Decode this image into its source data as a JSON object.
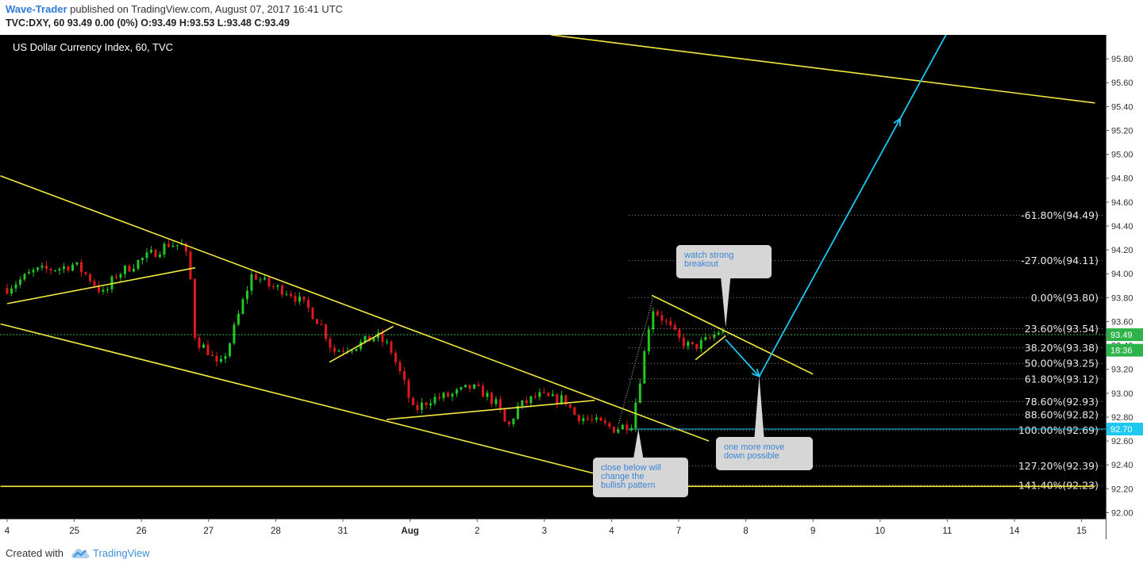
{
  "header": {
    "author": "Wave-Trader",
    "published_text": " published on TradingView.com, August 07, 2017 16:41 UTC",
    "ticker_line": "TVC:DXY, 60  93.49 0.00 (0%) O:93.49 H:93.53 L:93.48 C:93.49"
  },
  "footer": {
    "created_with": "Created with",
    "brand": "TradingView"
  },
  "colors": {
    "background": "#000000",
    "up_candle": "#23c623",
    "down_candle": "#e01a1a",
    "trendline": "#f2ea3c",
    "projection_arrow": "#1ec8f0",
    "fib_line": "#8a8a8a",
    "price_label": "#1ec8f0"
  },
  "chart_data": {
    "type": "candlestick",
    "title": "US Dollar Currency Index, 60, TVC",
    "x_ticks": [
      "4",
      "25",
      "26",
      "27",
      "28",
      "31",
      "Aug",
      "2",
      "3",
      "4",
      "7",
      "8",
      "9",
      "10",
      "11",
      "14",
      "15"
    ],
    "y_ticks": [
      "92.00",
      "92.20",
      "92.40",
      "92.60",
      "92.80",
      "93.00",
      "93.20",
      "93.40",
      "93.60",
      "93.80",
      "94.00",
      "94.20",
      "94.40",
      "94.60",
      "94.80",
      "95.00",
      "95.20",
      "95.40",
      "95.60",
      "95.80"
    ],
    "ylim": [
      91.95,
      96.0
    ],
    "grid": false,
    "series_close": [
      {
        "t": 0.0,
        "v": 93.88
      },
      {
        "t": 0.4,
        "v": 94.02
      },
      {
        "t": 0.8,
        "v": 94.05
      },
      {
        "t": 1.0,
        "v": 94.08
      },
      {
        "t": 1.2,
        "v": 93.98
      },
      {
        "t": 1.45,
        "v": 93.82
      },
      {
        "t": 1.6,
        "v": 93.98
      },
      {
        "t": 1.8,
        "v": 94.05
      },
      {
        "t": 2.0,
        "v": 94.12
      },
      {
        "t": 2.2,
        "v": 94.18
      },
      {
        "t": 2.4,
        "v": 94.25
      },
      {
        "t": 2.6,
        "v": 94.24
      },
      {
        "t": 2.7,
        "v": 94.1
      },
      {
        "t": 2.75,
        "v": 93.85
      },
      {
        "t": 2.8,
        "v": 93.45
      },
      {
        "t": 3.0,
        "v": 93.35
      },
      {
        "t": 3.15,
        "v": 93.2
      },
      {
        "t": 3.3,
        "v": 93.4
      },
      {
        "t": 3.5,
        "v": 93.75
      },
      {
        "t": 3.65,
        "v": 94.0
      },
      {
        "t": 3.9,
        "v": 93.9
      },
      {
        "t": 4.2,
        "v": 93.85
      },
      {
        "t": 4.5,
        "v": 93.7
      },
      {
        "t": 4.7,
        "v": 93.55
      },
      {
        "t": 4.85,
        "v": 93.35
      },
      {
        "t": 5.2,
        "v": 93.4
      },
      {
        "t": 5.5,
        "v": 93.48
      },
      {
        "t": 5.7,
        "v": 93.38
      },
      {
        "t": 5.9,
        "v": 93.1
      },
      {
        "t": 6.05,
        "v": 92.85
      },
      {
        "t": 6.3,
        "v": 92.95
      },
      {
        "t": 6.6,
        "v": 92.98
      },
      {
        "t": 6.9,
        "v": 93.05
      },
      {
        "t": 7.1,
        "v": 93.0
      },
      {
        "t": 7.3,
        "v": 92.9
      },
      {
        "t": 7.45,
        "v": 92.7
      },
      {
        "t": 7.6,
        "v": 92.88
      },
      {
        "t": 7.9,
        "v": 92.98
      },
      {
        "t": 8.1,
        "v": 92.95
      },
      {
        "t": 8.3,
        "v": 92.95
      },
      {
        "t": 8.45,
        "v": 92.82
      },
      {
        "t": 8.65,
        "v": 92.78
      },
      {
        "t": 8.85,
        "v": 92.74
      },
      {
        "t": 9.05,
        "v": 92.7
      },
      {
        "t": 9.3,
        "v": 92.75
      },
      {
        "t": 9.45,
        "v": 93.2
      },
      {
        "t": 9.6,
        "v": 93.72
      },
      {
        "t": 9.8,
        "v": 93.6
      },
      {
        "t": 10.0,
        "v": 93.45
      },
      {
        "t": 10.2,
        "v": 93.38
      },
      {
        "t": 10.45,
        "v": 93.45
      },
      {
        "t": 10.6,
        "v": 93.52
      },
      {
        "t": 10.7,
        "v": 93.49
      }
    ],
    "fib_levels": [
      {
        "label": "-61.80%(94.49)",
        "value": 94.49
      },
      {
        "label": "-27.00%(94.11)",
        "value": 94.11
      },
      {
        "label": "0.00%(93.80)",
        "value": 93.8
      },
      {
        "label": "23.60%(93.54)",
        "value": 93.54
      },
      {
        "label": "38.20%(93.38)",
        "value": 93.38
      },
      {
        "label": "50.00%(93.25)",
        "value": 93.25
      },
      {
        "label": "61.80%(93.12)",
        "value": 93.12
      },
      {
        "label": "78.60%(92.93)",
        "value": 92.93
      },
      {
        "label": "88.60%(92.82)",
        "value": 92.82
      },
      {
        "label": "100.00%(92.69)",
        "value": 92.69
      },
      {
        "label": "127.20%(92.39)",
        "value": 92.39
      },
      {
        "label": "141.40%(92.23)",
        "value": 92.23
      }
    ],
    "price_labels": [
      {
        "text": "93.49",
        "value": 93.49
      },
      {
        "text": "18:36",
        "value": 93.36
      },
      {
        "text": "92.70",
        "value": 92.7
      }
    ],
    "trendlines": [
      {
        "name": "upper-channel",
        "from": {
          "t": -0.1,
          "v": 94.82
        },
        "to": {
          "t": 10.45,
          "v": 92.6
        }
      },
      {
        "name": "lower-channel",
        "from": {
          "t": -0.1,
          "v": 93.58
        },
        "to": {
          "t": 8.8,
          "v": 92.32
        }
      },
      {
        "name": "left-support",
        "from": {
          "t": 0.0,
          "v": 93.75
        },
        "to": {
          "t": 2.8,
          "v": 94.05
        }
      },
      {
        "name": "mid-flag",
        "from": {
          "t": 4.8,
          "v": 93.26
        },
        "to": {
          "t": 5.75,
          "v": 93.56
        }
      },
      {
        "name": "bottom-neckline",
        "from": {
          "t": 5.65,
          "v": 92.78
        },
        "to": {
          "t": 8.75,
          "v": 92.94
        }
      },
      {
        "name": "top-resistance",
        "from": {
          "t": 8.1,
          "v": 96.0
        },
        "to": {
          "t": 16.2,
          "v": 95.43
        }
      },
      {
        "name": "flag-top",
        "from": {
          "t": 9.6,
          "v": 93.82
        },
        "to": {
          "t": 12.0,
          "v": 93.16
        }
      },
      {
        "name": "flag-bottom",
        "from": {
          "t": 10.25,
          "v": 93.28
        },
        "to": {
          "t": 10.7,
          "v": 93.48
        }
      },
      {
        "name": "baseline-141",
        "from": {
          "t": -0.1,
          "v": 92.22
        },
        "to": {
          "t": 16.2,
          "v": 92.22
        }
      }
    ],
    "projection": [
      {
        "t": 10.7,
        "v": 93.45
      },
      {
        "t": 11.2,
        "v": 93.14
      },
      {
        "t": 14.0,
        "v": 96.02
      }
    ],
    "annotations": [
      {
        "text": "watch strong\nbreakout",
        "anchor": {
          "t": 10.7,
          "v": 93.55
        }
      },
      {
        "text": "one more move\ndown possible",
        "anchor": {
          "t": 11.2,
          "v": 93.14
        }
      },
      {
        "text": "close below will\nchange the\nbullish pattern",
        "anchor": {
          "t": 9.4,
          "v": 92.7
        }
      }
    ]
  }
}
